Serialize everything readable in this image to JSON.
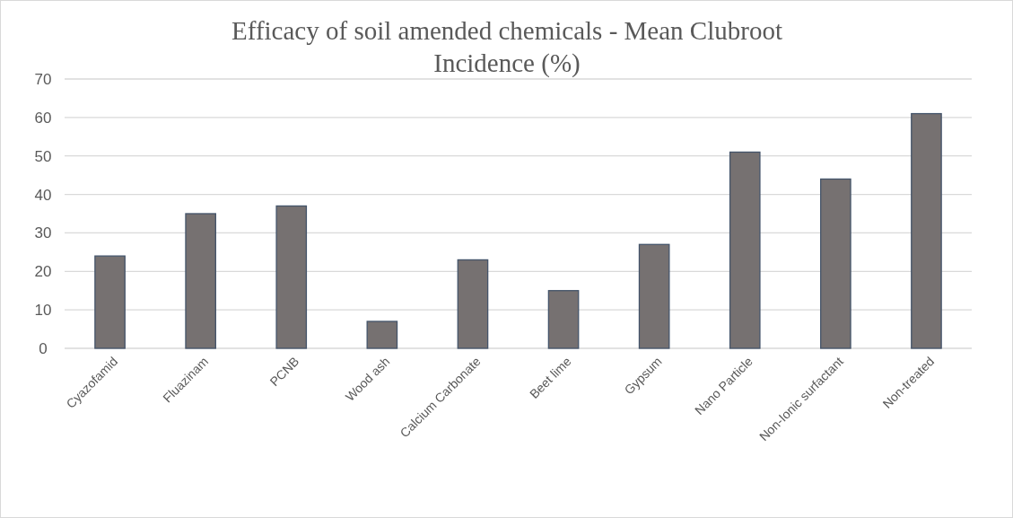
{
  "chart_data": {
    "type": "bar",
    "title": "Efficacy of soil amended chemicals - Mean Clubroot Incidence (%)",
    "categories": [
      "Cyazofamid",
      "Fluazinam",
      "PCNB",
      "Wood ash",
      "Calcium Carbonate",
      "Beet lime",
      "Gypsum",
      "Nano Particle",
      "Non-Ionic surfactant",
      "Non-treated"
    ],
    "values": [
      24,
      35,
      37,
      7,
      23,
      15,
      27,
      51,
      44,
      61
    ],
    "color": "#767171",
    "ylim": [
      0,
      70
    ],
    "yticks": [
      0,
      10,
      20,
      30,
      40,
      50,
      60,
      70
    ],
    "grid": true
  }
}
